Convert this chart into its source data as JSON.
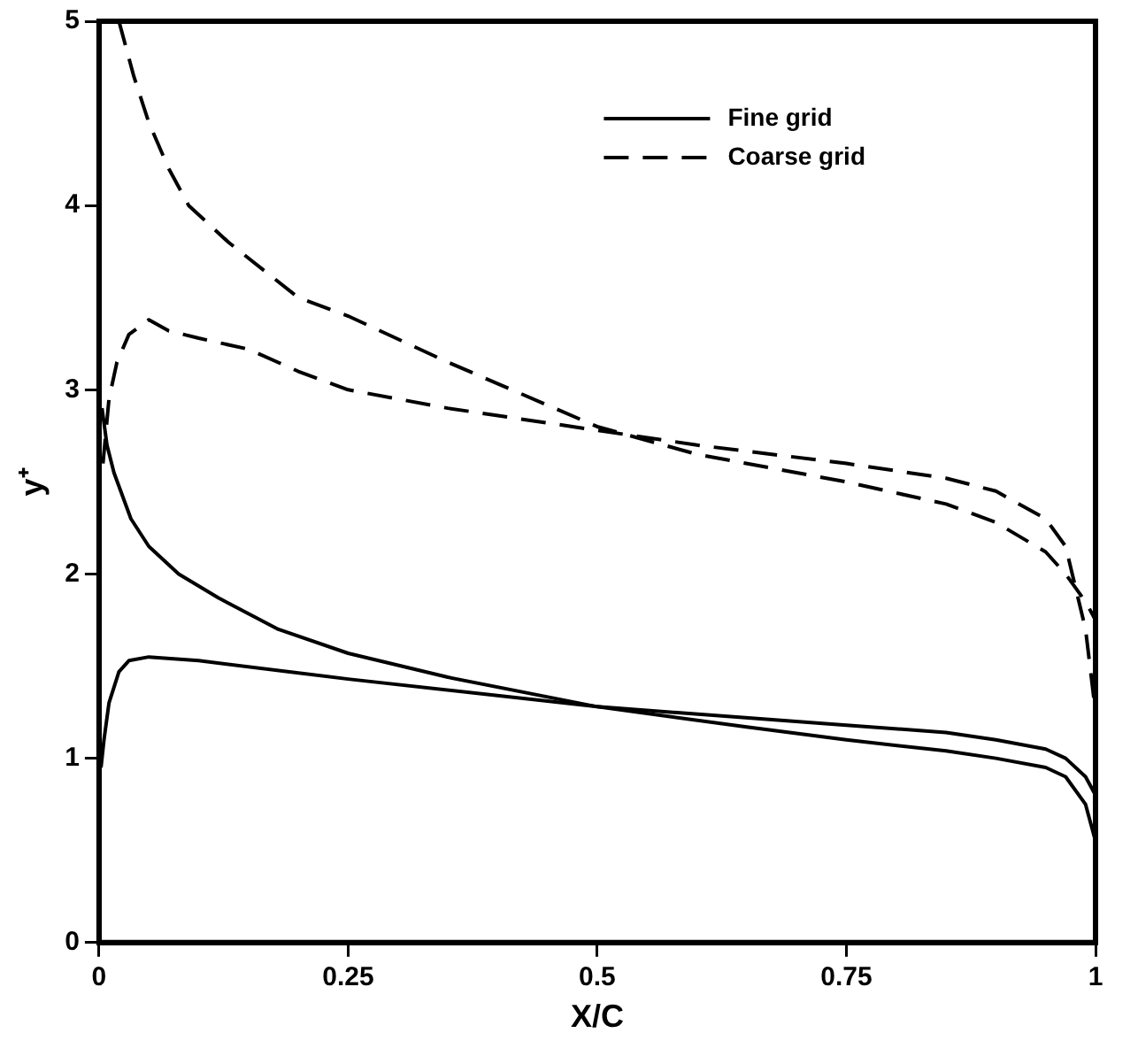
{
  "chart_data": {
    "type": "line",
    "xlabel": "X/C",
    "ylabel": "y⁺",
    "xlim": [
      0,
      1
    ],
    "ylim": [
      0,
      5
    ],
    "xticks": [
      0,
      0.25,
      0.5,
      0.75,
      1
    ],
    "yticks": [
      0,
      1,
      2,
      3,
      4,
      5
    ],
    "grid": false,
    "legend": "top right",
    "marker": "none",
    "series": [
      {
        "name": "Fine grid",
        "color": "#000000",
        "line_style": "solid",
        "x": [
          0.003,
          0.008,
          0.015,
          0.032,
          0.05,
          0.08,
          0.12,
          0.18,
          0.25,
          0.35,
          0.5,
          0.65,
          0.75,
          0.85,
          0.9,
          0.95,
          0.97,
          0.99,
          1.0
        ],
        "values": [
          2.9,
          2.7,
          2.55,
          2.3,
          2.15,
          2.0,
          1.87,
          1.7,
          1.57,
          1.44,
          1.28,
          1.17,
          1.1,
          1.04,
          1.0,
          0.95,
          0.9,
          0.75,
          0.55
        ]
      },
      {
        "color": "#000000",
        "line_style": "solid",
        "x": [
          0.002,
          0.005,
          0.01,
          0.02,
          0.03,
          0.05,
          0.1,
          0.25,
          0.5,
          0.75,
          0.85,
          0.9,
          0.95,
          0.97,
          0.99,
          1.0
        ],
        "values": [
          0.95,
          1.1,
          1.3,
          1.47,
          1.53,
          1.55,
          1.53,
          1.43,
          1.28,
          1.18,
          1.14,
          1.1,
          1.05,
          1.0,
          0.9,
          0.8
        ]
      },
      {
        "name": "Coarse grid",
        "color": "#000000",
        "line_style": "dashed",
        "x": [
          0.02,
          0.035,
          0.05,
          0.07,
          0.09,
          0.13,
          0.2,
          0.25,
          0.35,
          0.5,
          0.6,
          0.75,
          0.85,
          0.9,
          0.95,
          0.97,
          0.99,
          1.0
        ],
        "values": [
          5.0,
          4.7,
          4.45,
          4.2,
          4.0,
          3.8,
          3.5,
          3.4,
          3.15,
          2.8,
          2.65,
          2.5,
          2.38,
          2.28,
          2.12,
          2.0,
          1.85,
          1.75
        ]
      },
      {
        "color": "#000000",
        "line_style": "dashed",
        "x": [
          0.004,
          0.01,
          0.018,
          0.03,
          0.05,
          0.07,
          0.1,
          0.15,
          0.2,
          0.25,
          0.35,
          0.5,
          0.6,
          0.75,
          0.85,
          0.9,
          0.95,
          0.97,
          0.99,
          1.0
        ],
        "values": [
          2.6,
          2.95,
          3.15,
          3.3,
          3.38,
          3.32,
          3.28,
          3.22,
          3.1,
          3.0,
          2.9,
          2.78,
          2.7,
          2.6,
          2.52,
          2.45,
          2.3,
          2.15,
          1.7,
          1.25
        ]
      }
    ]
  }
}
